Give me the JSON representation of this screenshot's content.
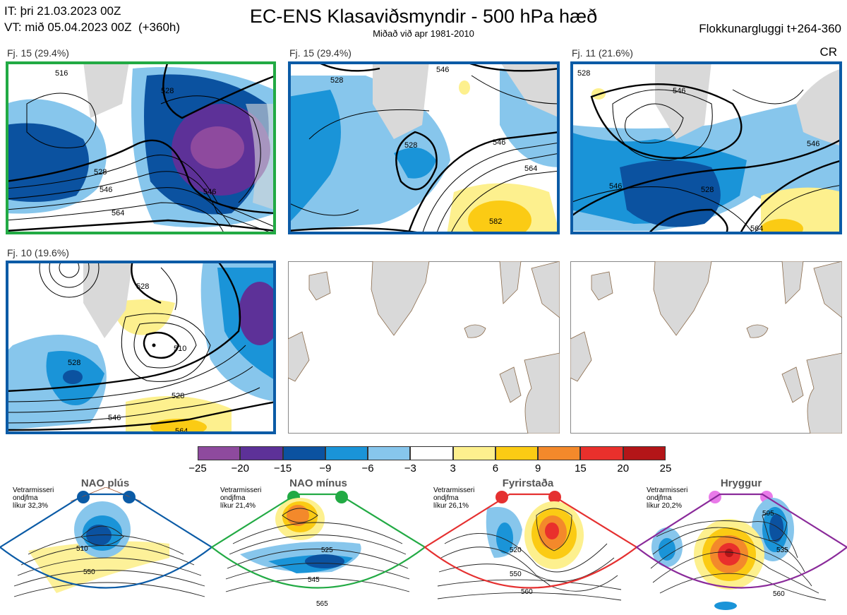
{
  "header": {
    "it_line": "IT: þri 21.03.2023 00Z",
    "vt_line": "VT: mið 05.04.2023 00Z  (+360h)",
    "title": "EC-ENS Klasaviðsmyndir - 500 hPa hæð",
    "subtitle": "Miðað við apr 1981-2010",
    "window": "Flokkunargluggi t+264-360",
    "code": "CR"
  },
  "panels": [
    {
      "label": "Fj. 15 (29.4%)",
      "border": "#22aa44",
      "contours": [
        "528",
        "546",
        "564",
        "528",
        "546",
        "516"
      ]
    },
    {
      "label": "Fj. 15 (29.4%)",
      "border": "#0b5ba6",
      "contours": [
        "528",
        "528",
        "546",
        "564",
        "582",
        "546"
      ]
    },
    {
      "label": "Fj. 11 (21.6%)",
      "border": "#0b5ba6",
      "contours": [
        "528",
        "546",
        "546",
        "528",
        "546",
        "564"
      ]
    },
    {
      "label": "Fj. 10 (19.6%)",
      "border": "#0b5ba6",
      "contours": [
        "528",
        "510",
        "528",
        "528",
        "546",
        "564"
      ]
    },
    {
      "label": "",
      "border": "none",
      "contours": []
    },
    {
      "label": "",
      "border": "none",
      "contours": []
    }
  ],
  "colorbar": {
    "colors": [
      "#8e4a9e",
      "#5d3198",
      "#0b52a0",
      "#1a94d8",
      "#87c6ec",
      "#ffffff",
      "#fdf08e",
      "#fbcb14",
      "#f3892b",
      "#e9302c",
      "#b31518"
    ],
    "labels": [
      "−25",
      "−20",
      "−15",
      "−9",
      "−6",
      "−3",
      "3",
      "6",
      "9",
      "15",
      "20",
      "25"
    ]
  },
  "regimes": [
    {
      "name": "NAO plús",
      "season": "Vetrarmisseri",
      "desc": "ondjfma",
      "prob": "líkur 32,3%",
      "color": "#0b5ba6",
      "contours": [
        "510",
        "550"
      ]
    },
    {
      "name": "NAO mínus",
      "season": "Vetrarmisseri",
      "desc": "ondjfma",
      "prob": "líkur 21,4%",
      "color": "#22aa44",
      "contours": [
        "525",
        "545",
        "565"
      ]
    },
    {
      "name": "Fyrirstaða",
      "season": "Vetrarmisseri",
      "desc": "ondjfma",
      "prob": "líkur 26,1%",
      "color": "#e53030",
      "contours": [
        "520",
        "550",
        "560"
      ]
    },
    {
      "name": "Hryggur",
      "season": "Vetrarmisseri",
      "desc": "ondjfma",
      "prob": "líkur 20,2%",
      "color": "#e97ae9",
      "contours": [
        "505",
        "535",
        "560"
      ]
    }
  ]
}
